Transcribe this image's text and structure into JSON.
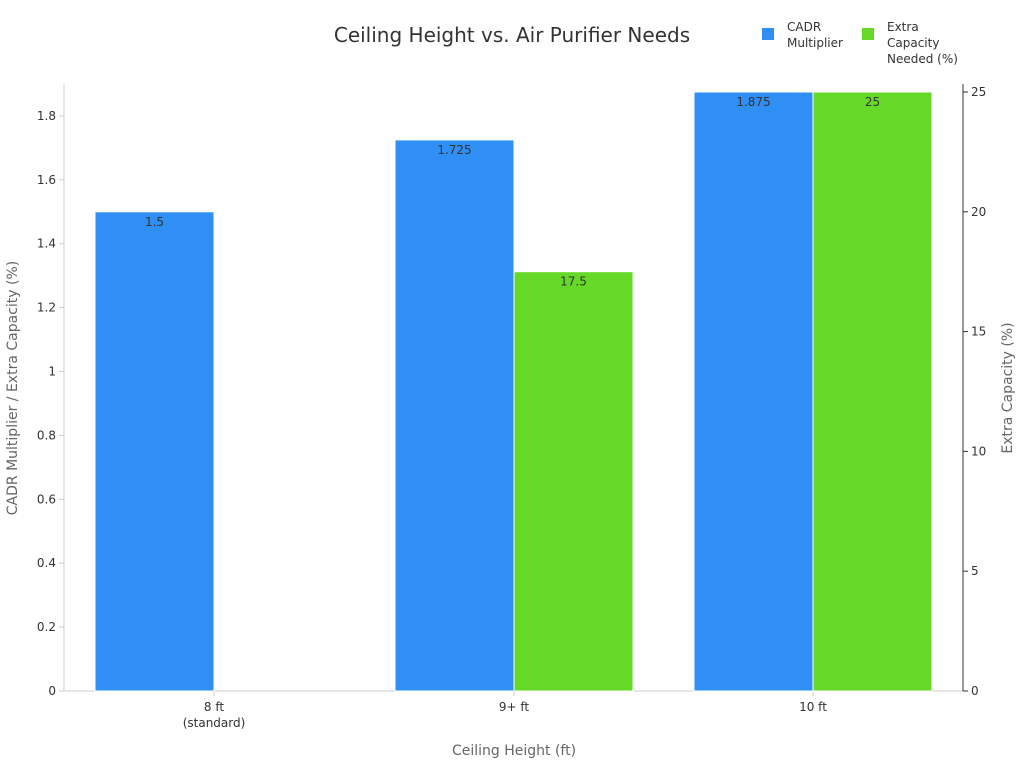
{
  "chart_data": {
    "type": "bar",
    "title": "Ceiling Height vs. Air Purifier Needs",
    "xlabel": "Ceiling Height (ft)",
    "ylabel_left": "CADR Multiplier / Extra Capacity (%)",
    "ylabel_right": "Extra Capacity (%)",
    "categories": [
      [
        "8 ft",
        "(standard)"
      ],
      [
        "9+ ft"
      ],
      [
        "10 ft"
      ]
    ],
    "series": [
      {
        "name": [
          "CADR",
          "Multiplier"
        ],
        "axis": "left",
        "color": "#2f8ff5",
        "values": [
          1.5,
          1.725,
          1.875
        ],
        "labels": [
          "1.5",
          "1.725",
          "1.875"
        ]
      },
      {
        "name": [
          "Extra",
          "Capacity",
          "Needed (%)"
        ],
        "axis": "right",
        "color": "#66d928",
        "values": [
          null,
          17.5,
          25
        ],
        "labels": [
          "",
          "17.5",
          "25"
        ]
      }
    ],
    "ylim_left": [
      0,
      1.9
    ],
    "yticks_left": [
      0,
      0.2,
      0.4,
      0.6,
      0.8,
      1,
      1.2,
      1.4,
      1.6,
      1.8
    ],
    "yticks_left_labels": [
      "0",
      "0.2",
      "0.4",
      "0.6",
      "0.8",
      "1",
      "1.2",
      "1.4",
      "1.6",
      "1.8"
    ],
    "ylim_right": [
      0,
      25
    ],
    "yticks_right": [
      0,
      5,
      10,
      15,
      20,
      25
    ],
    "yticks_right_labels": [
      "0",
      "5",
      "10",
      "15",
      "20",
      "25"
    ],
    "grid": false,
    "legend_position": "top-right"
  }
}
